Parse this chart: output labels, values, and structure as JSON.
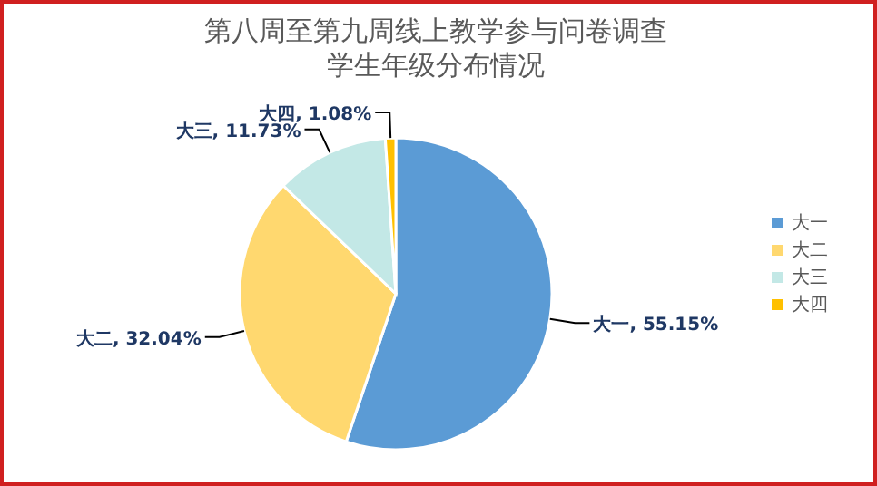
{
  "chart_data": {
    "type": "pie",
    "title": "第八周至第九周线上教学参与问卷调查",
    "subtitle": "学生年级分布情况",
    "categories": [
      "大一",
      "大二",
      "大三",
      "大四"
    ],
    "values": [
      55.15,
      32.04,
      11.73,
      1.08
    ],
    "colors": [
      "#5b9bd5",
      "#ffd86f",
      "#c3e8e6",
      "#ffc000"
    ],
    "value_labels": [
      "大一, 55.15%",
      "大二, 32.04%",
      "大三, 11.73%",
      "大四, 1.08%"
    ],
    "legend": "right"
  }
}
